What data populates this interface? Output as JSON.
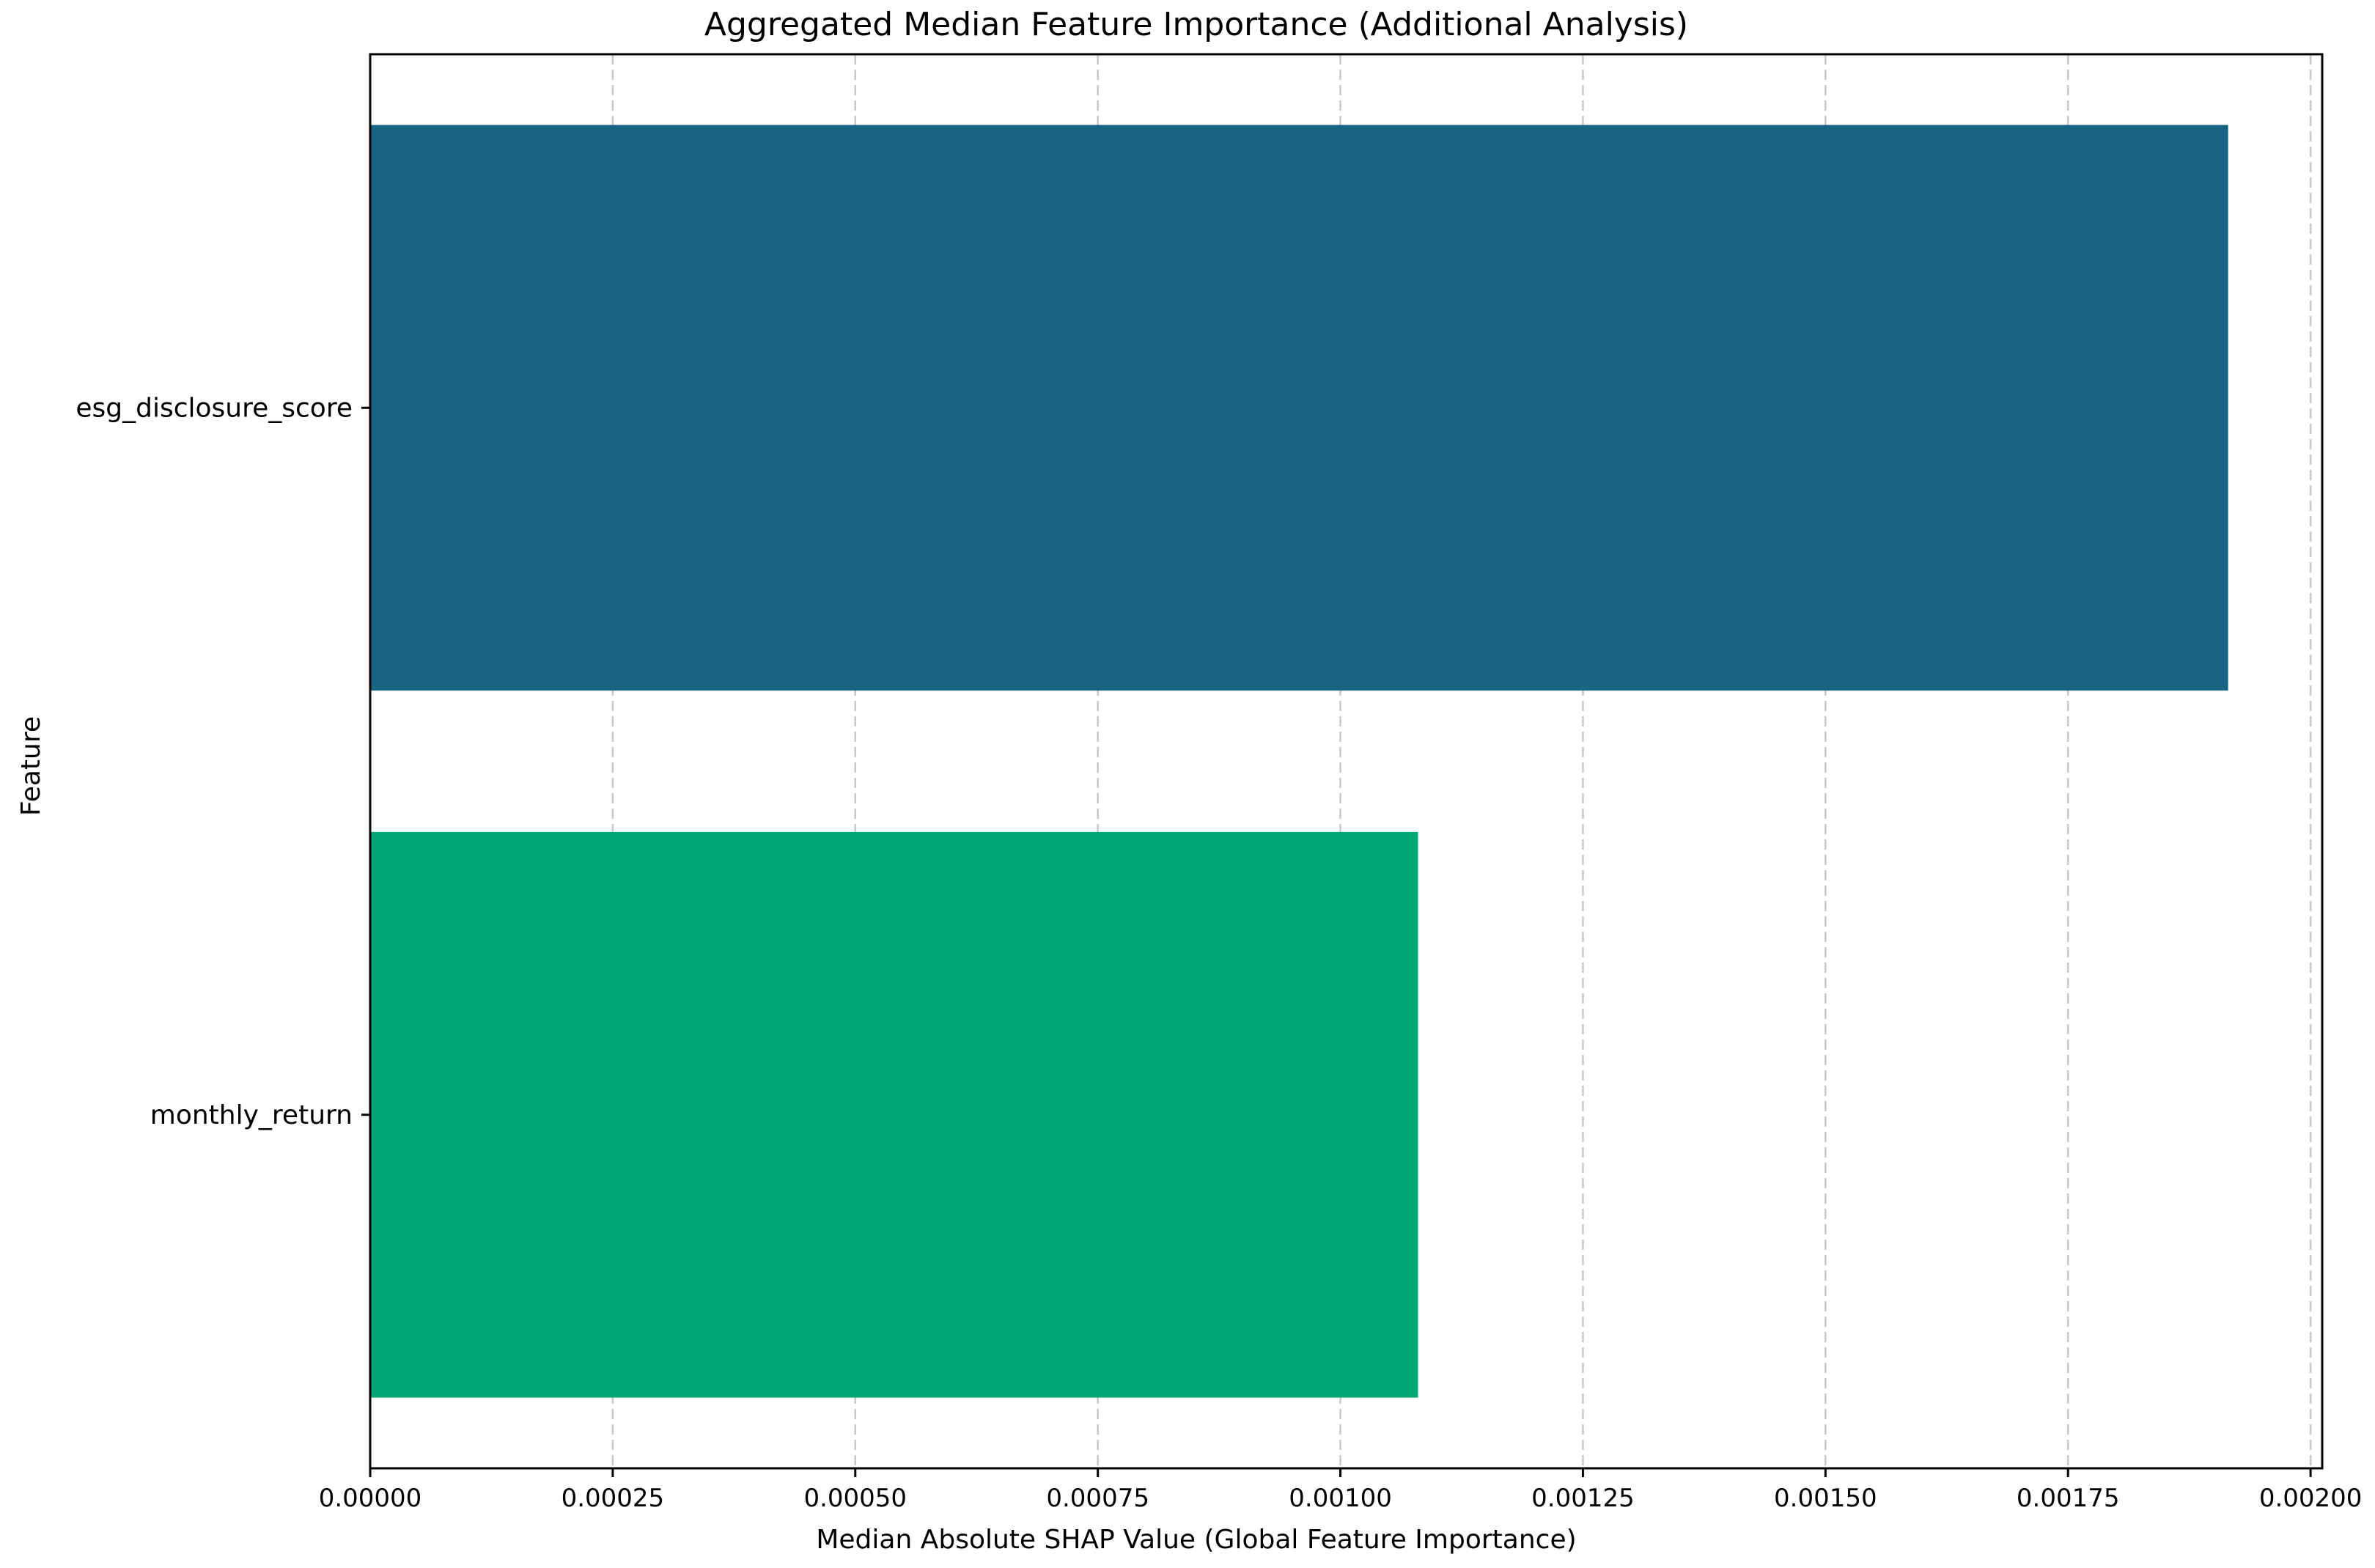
{
  "chart_data": {
    "type": "bar",
    "orientation": "horizontal",
    "title": "Aggregated Median Feature Importance (Additional Analysis)",
    "xlabel": "Median Absolute SHAP Value (Global Feature Importance)",
    "ylabel": "Feature",
    "categories": [
      "esg_disclosure_score",
      "monthly_return"
    ],
    "values": [
      0.001915,
      0.00108
    ],
    "colors": [
      "#176583",
      "#02a776"
    ],
    "xlim": [
      0,
      0.002012
    ],
    "xticks": [
      0,
      0.00025,
      0.0005,
      0.00075,
      0.001,
      0.00125,
      0.0015,
      0.00175,
      0.002
    ],
    "xtick_labels": [
      "0.00000",
      "0.00025",
      "0.00050",
      "0.00075",
      "0.00100",
      "0.00125",
      "0.00150",
      "0.00175",
      "0.00200"
    ],
    "grid": "x-axis dashed",
    "legend": "none"
  }
}
